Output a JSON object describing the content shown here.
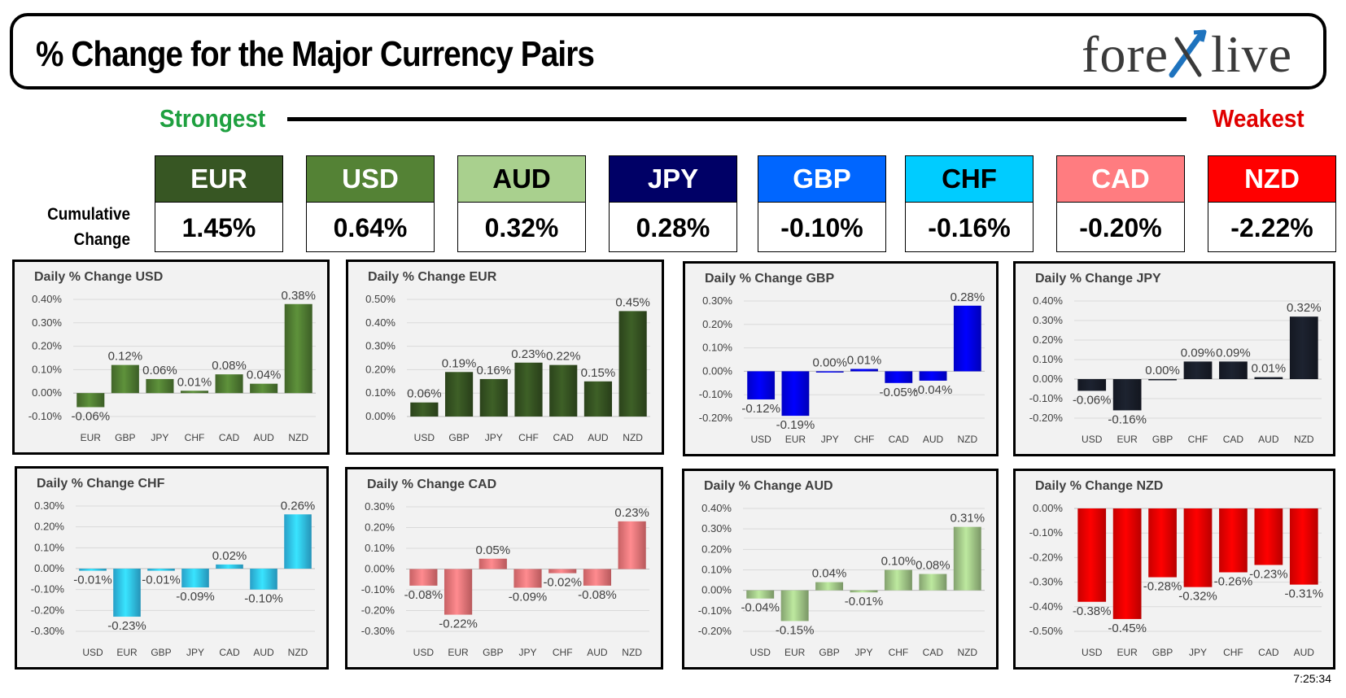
{
  "header": {
    "title": "% Change for the Major Currency Pairs",
    "logo_left": "fore",
    "logo_right": "live",
    "logo_icon": "forexlive-x-icon",
    "logo_accent_color": "#1e73be"
  },
  "strength": {
    "strongest": "Strongest",
    "weakest": "Weakest"
  },
  "cumulative_label": "Cumulative\nChange",
  "cumulative": [
    {
      "ccy": "EUR",
      "value": "1.45%",
      "head_color": "#375623",
      "text_color": "#ffffff"
    },
    {
      "ccy": "USD",
      "value": "0.64%",
      "head_color": "#548235",
      "text_color": "#ffffff"
    },
    {
      "ccy": "AUD",
      "value": "0.32%",
      "head_color": "#a9d08e",
      "text_color": "#000000"
    },
    {
      "ccy": "JPY",
      "value": "0.28%",
      "head_color": "#000066",
      "text_color": "#ffffff"
    },
    {
      "ccy": "GBP",
      "value": "-0.10%",
      "head_color": "#0066ff",
      "text_color": "#ffffff"
    },
    {
      "ccy": "CHF",
      "value": "-0.16%",
      "head_color": "#00ccff",
      "text_color": "#000000"
    },
    {
      "ccy": "CAD",
      "value": "-0.20%",
      "head_color": "#ff7c80",
      "text_color": "#ffffff"
    },
    {
      "ccy": "NZD",
      "value": "-2.22%",
      "head_color": "#ff0000",
      "text_color": "#ffffff"
    }
  ],
  "timestamp": "7:25:34",
  "chart_data": [
    {
      "type": "bar",
      "title": "Daily % Change USD",
      "color": "#548235",
      "categories": [
        "EUR",
        "GBP",
        "JPY",
        "CHF",
        "CAD",
        "AUD",
        "NZD"
      ],
      "values": [
        -0.06,
        0.12,
        0.06,
        0.01,
        0.08,
        0.04,
        0.38
      ],
      "labels": [
        "-0.06%",
        "0.12%",
        "0.06%",
        "0.01%",
        "0.08%",
        "0.04%",
        "0.38%"
      ],
      "ylim": [
        -0.1,
        0.4
      ],
      "ticks": [
        -0.1,
        0.0,
        0.1,
        0.2,
        0.3,
        0.4
      ],
      "tick_labels": [
        "-0.10%",
        "0.00%",
        "0.10%",
        "0.20%",
        "0.30%",
        "0.40%"
      ]
    },
    {
      "type": "bar",
      "title": "Daily % Change EUR",
      "color": "#375623",
      "categories": [
        "USD",
        "GBP",
        "JPY",
        "CHF",
        "CAD",
        "AUD",
        "NZD"
      ],
      "values": [
        0.06,
        0.19,
        0.16,
        0.23,
        0.22,
        0.15,
        0.45
      ],
      "labels": [
        "0.06%",
        "0.19%",
        "0.16%",
        "0.23%",
        "0.22%",
        "0.15%",
        "0.45%"
      ],
      "ylim": [
        0.0,
        0.5
      ],
      "ticks": [
        0.0,
        0.1,
        0.2,
        0.3,
        0.4,
        0.5
      ],
      "tick_labels": [
        "0.00%",
        "0.10%",
        "0.20%",
        "0.30%",
        "0.40%",
        "0.50%"
      ]
    },
    {
      "type": "bar",
      "title": "Daily % Change GBP",
      "color": "#0000ff",
      "categories": [
        "USD",
        "EUR",
        "JPY",
        "CHF",
        "CAD",
        "AUD",
        "NZD"
      ],
      "values": [
        -0.12,
        -0.19,
        0.0,
        0.01,
        -0.05,
        -0.04,
        0.28
      ],
      "labels": [
        "-0.12%",
        "-0.19%",
        "0.00%",
        "0.01%",
        "-0.05%",
        "-0.04%",
        "0.28%"
      ],
      "ylim": [
        -0.2,
        0.3
      ],
      "ticks": [
        -0.2,
        -0.1,
        0.0,
        0.1,
        0.2,
        0.3
      ],
      "tick_labels": [
        "-0.20%",
        "-0.10%",
        "0.00%",
        "0.10%",
        "0.20%",
        "0.30%"
      ]
    },
    {
      "type": "bar",
      "title": "Daily % Change JPY",
      "color": "#1a1f2b",
      "categories": [
        "USD",
        "EUR",
        "GBP",
        "CHF",
        "CAD",
        "AUD",
        "NZD"
      ],
      "values": [
        -0.06,
        -0.16,
        0.0,
        0.09,
        0.09,
        0.01,
        0.32
      ],
      "labels": [
        "-0.06%",
        "-0.16%",
        "0.00%",
        "0.09%",
        "0.09%",
        "0.01%",
        "0.32%"
      ],
      "ylim": [
        -0.2,
        0.4
      ],
      "ticks": [
        -0.2,
        -0.1,
        0.0,
        0.1,
        0.2,
        0.3,
        0.4
      ],
      "tick_labels": [
        "-0.20%",
        "-0.10%",
        "0.00%",
        "0.10%",
        "0.20%",
        "0.30%",
        "0.40%"
      ]
    },
    {
      "type": "bar",
      "title": "Daily % Change CHF",
      "color": "#33ccff",
      "categories": [
        "USD",
        "EUR",
        "GBP",
        "JPY",
        "CAD",
        "AUD",
        "NZD"
      ],
      "values": [
        -0.01,
        -0.23,
        -0.01,
        -0.09,
        0.02,
        -0.1,
        0.26
      ],
      "labels": [
        "-0.01%",
        "-0.23%",
        "-0.01%",
        "-0.09%",
        "0.02%",
        "-0.10%",
        "0.26%"
      ],
      "ylim": [
        -0.3,
        0.3
      ],
      "ticks": [
        -0.3,
        -0.2,
        -0.1,
        0.0,
        0.1,
        0.2,
        0.3
      ],
      "tick_labels": [
        "-0.30%",
        "-0.20%",
        "-0.10%",
        "0.00%",
        "0.10%",
        "0.20%",
        "0.30%"
      ]
    },
    {
      "type": "bar",
      "title": "Daily % Change CAD",
      "color": "#ff7c80",
      "categories": [
        "USD",
        "EUR",
        "GBP",
        "JPY",
        "CHF",
        "AUD",
        "NZD"
      ],
      "values": [
        -0.08,
        -0.22,
        0.05,
        -0.09,
        -0.02,
        -0.08,
        0.23
      ],
      "labels": [
        "-0.08%",
        "-0.22%",
        "0.05%",
        "-0.09%",
        "-0.02%",
        "-0.08%",
        "0.23%"
      ],
      "ylim": [
        -0.3,
        0.3
      ],
      "ticks": [
        -0.3,
        -0.2,
        -0.1,
        0.0,
        0.1,
        0.2,
        0.3
      ],
      "tick_labels": [
        "-0.30%",
        "-0.20%",
        "-0.10%",
        "0.00%",
        "0.10%",
        "0.20%",
        "0.30%"
      ]
    },
    {
      "type": "bar",
      "title": "Daily % Change AUD",
      "color": "#a9d08e",
      "categories": [
        "USD",
        "EUR",
        "GBP",
        "JPY",
        "CHF",
        "CAD",
        "NZD"
      ],
      "values": [
        -0.04,
        -0.15,
        0.04,
        -0.01,
        0.1,
        0.08,
        0.31
      ],
      "labels": [
        "-0.04%",
        "-0.15%",
        "0.04%",
        "-0.01%",
        "0.10%",
        "0.08%",
        "0.31%"
      ],
      "ylim": [
        -0.2,
        0.4
      ],
      "ticks": [
        -0.2,
        -0.1,
        0.0,
        0.1,
        0.2,
        0.3,
        0.4
      ],
      "tick_labels": [
        "-0.20%",
        "-0.10%",
        "0.00%",
        "0.10%",
        "0.20%",
        "0.30%",
        "0.40%"
      ]
    },
    {
      "type": "bar",
      "title": "Daily % Change NZD",
      "color": "#ff0000",
      "categories": [
        "USD",
        "EUR",
        "GBP",
        "JPY",
        "CHF",
        "CAD",
        "AUD"
      ],
      "values": [
        -0.38,
        -0.45,
        -0.28,
        -0.32,
        -0.26,
        -0.23,
        -0.31
      ],
      "labels": [
        "-0.38%",
        "-0.45%",
        "-0.28%",
        "-0.32%",
        "-0.26%",
        "-0.23%",
        "-0.31%"
      ],
      "ylim": [
        -0.5,
        0.0
      ],
      "ticks": [
        -0.5,
        -0.4,
        -0.3,
        -0.2,
        -0.1,
        0.0
      ],
      "tick_labels": [
        "-0.50%",
        "-0.40%",
        "-0.30%",
        "-0.20%",
        "-0.10%",
        "0.00%"
      ]
    }
  ]
}
